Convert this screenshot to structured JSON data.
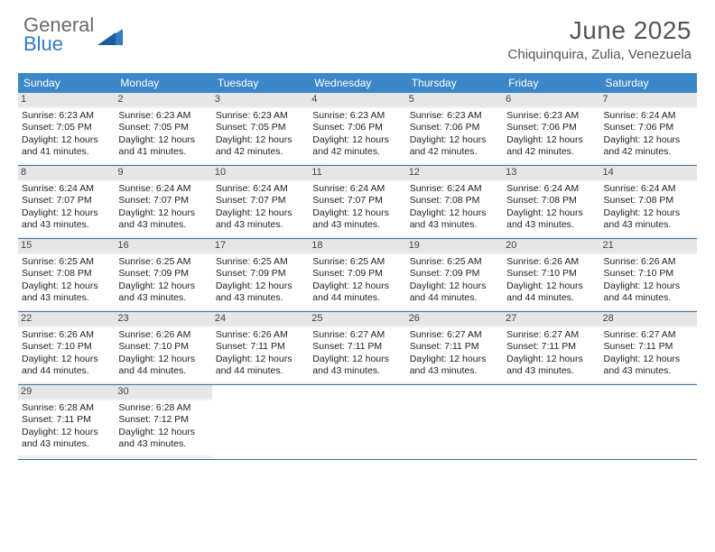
{
  "logo": {
    "line1": "General",
    "line2": "Blue"
  },
  "title": {
    "month": "June 2025",
    "location": "Chiquinquira, Zulia, Venezuela"
  },
  "colors": {
    "header_bg": "#3c87c7",
    "header_text": "#ffffff",
    "row_border": "#3c6fa4",
    "daynum_bg": "#e6e6e6",
    "body_text": "#222222",
    "title_text": "#555555",
    "logo_gray": "#6b6b6b",
    "logo_blue": "#2f7bc4"
  },
  "dow": [
    "Sunday",
    "Monday",
    "Tuesday",
    "Wednesday",
    "Thursday",
    "Friday",
    "Saturday"
  ],
  "weeks": [
    [
      {
        "n": "1",
        "sunrise": "6:23 AM",
        "sunset": "7:05 PM",
        "daylight": "12 hours and 41 minutes."
      },
      {
        "n": "2",
        "sunrise": "6:23 AM",
        "sunset": "7:05 PM",
        "daylight": "12 hours and 41 minutes."
      },
      {
        "n": "3",
        "sunrise": "6:23 AM",
        "sunset": "7:05 PM",
        "daylight": "12 hours and 42 minutes."
      },
      {
        "n": "4",
        "sunrise": "6:23 AM",
        "sunset": "7:06 PM",
        "daylight": "12 hours and 42 minutes."
      },
      {
        "n": "5",
        "sunrise": "6:23 AM",
        "sunset": "7:06 PM",
        "daylight": "12 hours and 42 minutes."
      },
      {
        "n": "6",
        "sunrise": "6:23 AM",
        "sunset": "7:06 PM",
        "daylight": "12 hours and 42 minutes."
      },
      {
        "n": "7",
        "sunrise": "6:24 AM",
        "sunset": "7:06 PM",
        "daylight": "12 hours and 42 minutes."
      }
    ],
    [
      {
        "n": "8",
        "sunrise": "6:24 AM",
        "sunset": "7:07 PM",
        "daylight": "12 hours and 43 minutes."
      },
      {
        "n": "9",
        "sunrise": "6:24 AM",
        "sunset": "7:07 PM",
        "daylight": "12 hours and 43 minutes."
      },
      {
        "n": "10",
        "sunrise": "6:24 AM",
        "sunset": "7:07 PM",
        "daylight": "12 hours and 43 minutes."
      },
      {
        "n": "11",
        "sunrise": "6:24 AM",
        "sunset": "7:07 PM",
        "daylight": "12 hours and 43 minutes."
      },
      {
        "n": "12",
        "sunrise": "6:24 AM",
        "sunset": "7:08 PM",
        "daylight": "12 hours and 43 minutes."
      },
      {
        "n": "13",
        "sunrise": "6:24 AM",
        "sunset": "7:08 PM",
        "daylight": "12 hours and 43 minutes."
      },
      {
        "n": "14",
        "sunrise": "6:24 AM",
        "sunset": "7:08 PM",
        "daylight": "12 hours and 43 minutes."
      }
    ],
    [
      {
        "n": "15",
        "sunrise": "6:25 AM",
        "sunset": "7:08 PM",
        "daylight": "12 hours and 43 minutes."
      },
      {
        "n": "16",
        "sunrise": "6:25 AM",
        "sunset": "7:09 PM",
        "daylight": "12 hours and 43 minutes."
      },
      {
        "n": "17",
        "sunrise": "6:25 AM",
        "sunset": "7:09 PM",
        "daylight": "12 hours and 43 minutes."
      },
      {
        "n": "18",
        "sunrise": "6:25 AM",
        "sunset": "7:09 PM",
        "daylight": "12 hours and 44 minutes."
      },
      {
        "n": "19",
        "sunrise": "6:25 AM",
        "sunset": "7:09 PM",
        "daylight": "12 hours and 44 minutes."
      },
      {
        "n": "20",
        "sunrise": "6:26 AM",
        "sunset": "7:10 PM",
        "daylight": "12 hours and 44 minutes."
      },
      {
        "n": "21",
        "sunrise": "6:26 AM",
        "sunset": "7:10 PM",
        "daylight": "12 hours and 44 minutes."
      }
    ],
    [
      {
        "n": "22",
        "sunrise": "6:26 AM",
        "sunset": "7:10 PM",
        "daylight": "12 hours and 44 minutes."
      },
      {
        "n": "23",
        "sunrise": "6:26 AM",
        "sunset": "7:10 PM",
        "daylight": "12 hours and 44 minutes."
      },
      {
        "n": "24",
        "sunrise": "6:26 AM",
        "sunset": "7:11 PM",
        "daylight": "12 hours and 44 minutes."
      },
      {
        "n": "25",
        "sunrise": "6:27 AM",
        "sunset": "7:11 PM",
        "daylight": "12 hours and 43 minutes."
      },
      {
        "n": "26",
        "sunrise": "6:27 AM",
        "sunset": "7:11 PM",
        "daylight": "12 hours and 43 minutes."
      },
      {
        "n": "27",
        "sunrise": "6:27 AM",
        "sunset": "7:11 PM",
        "daylight": "12 hours and 43 minutes."
      },
      {
        "n": "28",
        "sunrise": "6:27 AM",
        "sunset": "7:11 PM",
        "daylight": "12 hours and 43 minutes."
      }
    ],
    [
      {
        "n": "29",
        "sunrise": "6:28 AM",
        "sunset": "7:11 PM",
        "daylight": "12 hours and 43 minutes."
      },
      {
        "n": "30",
        "sunrise": "6:28 AM",
        "sunset": "7:12 PM",
        "daylight": "12 hours and 43 minutes."
      },
      null,
      null,
      null,
      null,
      null
    ]
  ],
  "labels": {
    "sunrise": "Sunrise:",
    "sunset": "Sunset:",
    "daylight": "Daylight:"
  }
}
